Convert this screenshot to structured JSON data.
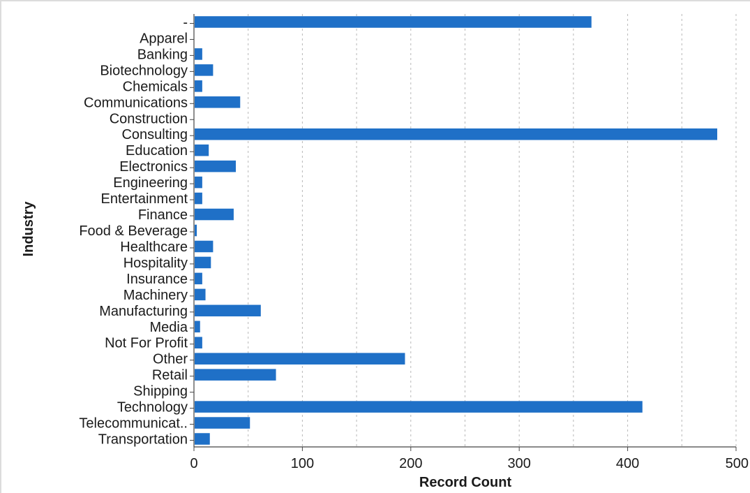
{
  "chart_data": {
    "type": "bar",
    "orientation": "horizontal",
    "title": "",
    "xlabel": "Record Count",
    "ylabel": "Industry",
    "xlim": [
      0,
      500
    ],
    "x_ticks": [
      0,
      100,
      200,
      300,
      400,
      500
    ],
    "grid": "vertical dotted every 50",
    "bar_color": "#1f70c7",
    "categories": [
      "-",
      "Apparel",
      "Banking",
      "Biotechnology",
      "Chemicals",
      "Communications",
      "Construction",
      "Consulting",
      "Education",
      "Electronics",
      "Engineering",
      "Entertainment",
      "Finance",
      "Food & Beverage",
      "Healthcare",
      "Hospitality",
      "Insurance",
      "Machinery",
      "Manufacturing",
      "Media",
      "Not For Profit",
      "Other",
      "Retail",
      "Shipping",
      "Technology",
      "Telecommunicat..",
      "Transportation"
    ],
    "values": [
      366,
      0,
      7,
      17,
      7,
      42,
      0,
      482,
      13,
      38,
      7,
      7,
      36,
      2,
      17,
      15,
      7,
      10,
      61,
      5,
      7,
      194,
      75,
      0,
      413,
      51,
      14
    ]
  }
}
